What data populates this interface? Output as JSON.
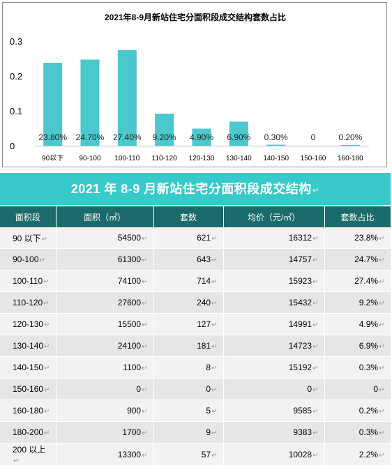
{
  "chart_data": {
    "type": "bar",
    "title": "2021年8-9月新站住宅分面积段成交结构套数占比",
    "categories": [
      "90以下",
      "90-100",
      "100-110",
      "110-120",
      "120-130",
      "130-140",
      "140-150",
      "150-160",
      "160-180"
    ],
    "values": [
      0.238,
      0.247,
      0.274,
      0.092,
      0.049,
      0.069,
      0.003,
      0,
      0.002
    ],
    "data_labels": [
      "23.80%",
      "24.70%",
      "27.40%",
      "9.20%",
      "4.90%",
      "6.90%",
      "0.30%",
      "0",
      "0.20%"
    ],
    "yticks": [
      "0",
      "0.1",
      "0.2",
      "0.3"
    ],
    "ylim": [
      0,
      0.3
    ],
    "bar_color": "#4ac8cd",
    "grid": false
  },
  "table": {
    "title": "2021 年 8-9 月新站住宅分面积段成交结构",
    "headers": [
      "面积段",
      "面积（㎡）",
      "套数",
      "均价（元/㎡）",
      "套数占比"
    ],
    "rows": [
      [
        "90 以下",
        "54500",
        "621",
        "16312",
        "23.8%"
      ],
      [
        "90-100",
        "61300",
        "643",
        "14757",
        "24.7%"
      ],
      [
        "100-110",
        "74100",
        "714",
        "15923",
        "27.4%"
      ],
      [
        "110-120",
        "27600",
        "240",
        "15432",
        "9.2%"
      ],
      [
        "120-130",
        "15500",
        "127",
        "14991",
        "4.9%"
      ],
      [
        "130-140",
        "24100",
        "181",
        "14723",
        "6.9%"
      ],
      [
        "140-150",
        "1100",
        "8",
        "15192",
        "0.3%"
      ],
      [
        "150-160",
        "0",
        "0",
        "0",
        "0"
      ],
      [
        "160-180",
        "900",
        "5",
        "9585",
        "0.2%"
      ],
      [
        "180-200",
        "1700",
        "9",
        "9383",
        "0.3%"
      ],
      [
        "200 以上",
        "13300",
        "57",
        "10028",
        "2.2%"
      ]
    ],
    "header_bg": "#1c6b6c",
    "title_bg": "#38c9ca"
  }
}
